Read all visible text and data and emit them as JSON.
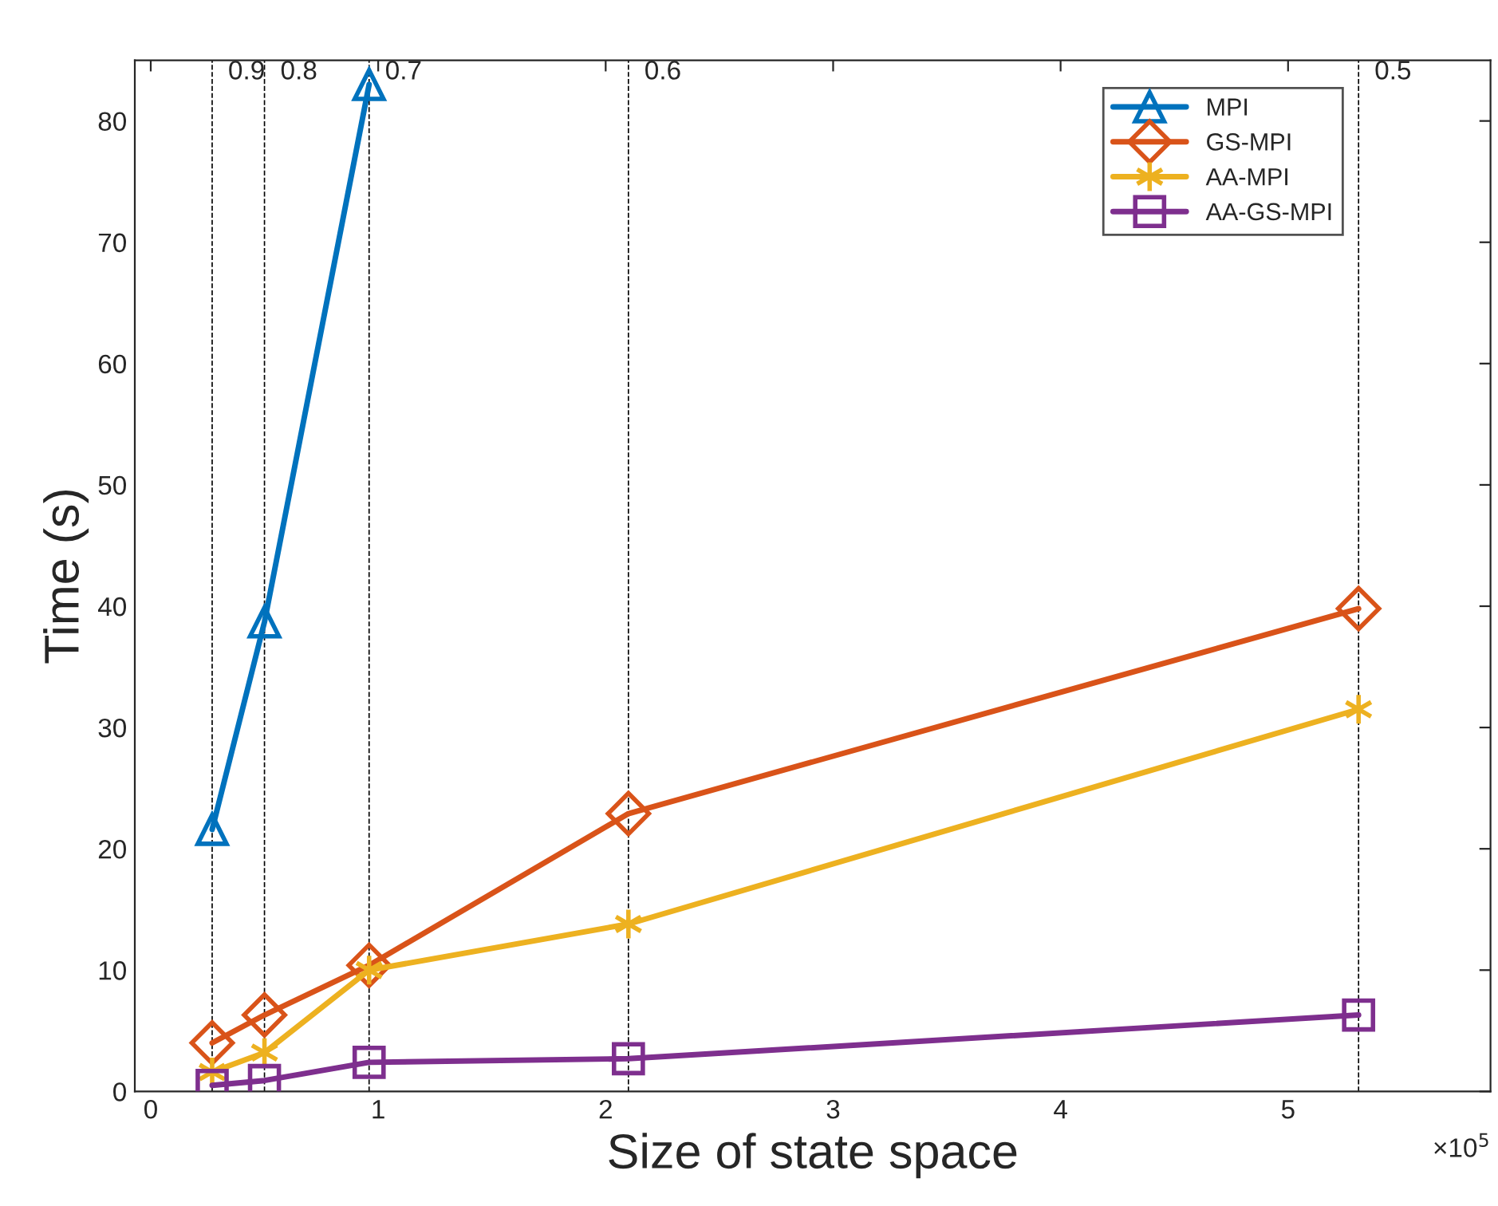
{
  "chart_data": {
    "type": "line",
    "xlabel": "Size of state space",
    "ylabel": "Time (s)",
    "annotations": [
      "×10$^{5}$",
      {
        "text": "0.9",
        "x": 0.27,
        "y": 84
      },
      {
        "text": "0.8",
        "x": 0.5,
        "y": 84
      },
      {
        "text": "0.7",
        "x": 0.96,
        "y": 84
      },
      {
        "text": "0.6",
        "x": 2.1,
        "y": 84
      },
      {
        "text": "0.5",
        "x": 5.31,
        "y": 84
      }
    ],
    "xlim": [
      -0.07,
      5.89
    ],
    "xticks": [
      0,
      1,
      2,
      3,
      4,
      5
    ],
    "ylim": [
      0,
      85
    ],
    "yticks": [
      0,
      10,
      20,
      30,
      40,
      50,
      60,
      70,
      80
    ],
    "grid": false,
    "legend": "top right",
    "line_style": "solid",
    "ref_lines": [
      {
        "axis": "x",
        "value": 0.27,
        "color": "#000000",
        "line_style": "dashed"
      },
      {
        "axis": "x",
        "value": 0.5,
        "color": "#000000",
        "line_style": "dashed"
      },
      {
        "axis": "x",
        "value": 0.96,
        "color": "#000000",
        "line_style": "dashed"
      },
      {
        "axis": "x",
        "value": 2.1,
        "color": "#000000",
        "line_style": "dashed"
      },
      {
        "axis": "x",
        "value": 5.31,
        "color": "#000000",
        "line_style": "dashed"
      }
    ],
    "series": [
      {
        "name": "MPI",
        "color": "#0072bd",
        "marker": "triangle",
        "x": [
          0.27,
          0.5,
          0.96
        ],
        "values": [
          21.6,
          38.7,
          83.0
        ]
      },
      {
        "name": "GS-MPI",
        "color": "#d95319",
        "marker": "diamond",
        "x": [
          0.27,
          0.5,
          0.96,
          2.1,
          5.31
        ],
        "values": [
          4.0,
          6.3,
          10.4,
          22.9,
          39.8
        ]
      },
      {
        "name": "AA-MPI",
        "color": "#edb120",
        "marker": "cross",
        "x": [
          0.27,
          0.5,
          0.96,
          2.1,
          5.31
        ],
        "values": [
          1.6,
          3.2,
          10.0,
          13.8,
          31.5
        ]
      },
      {
        "name": "AA-GS-MPI",
        "color": "#7e2f8e",
        "marker": "square",
        "x": [
          0.27,
          0.5,
          0.96,
          2.1,
          5.31
        ],
        "values": [
          0.5,
          0.9,
          2.4,
          2.7,
          6.3
        ]
      }
    ]
  }
}
